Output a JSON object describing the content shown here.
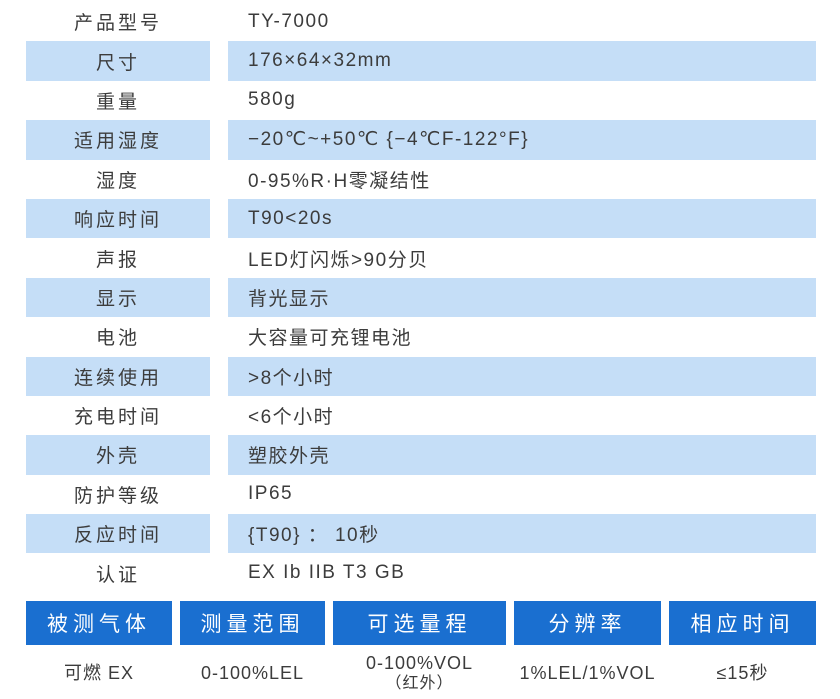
{
  "colors": {
    "row_shade_blue": "#c5def7",
    "header_blue": "#1a6fd0",
    "text_dark": "#3c3c3c",
    "header_text": "#ffffff"
  },
  "spec_table": {
    "rows": [
      {
        "label": "产品型号",
        "value": "TY-7000",
        "shaded": false
      },
      {
        "label": "尺寸",
        "value": "176×64×32mm",
        "shaded": true
      },
      {
        "label": "重量",
        "value": "580g",
        "shaded": false
      },
      {
        "label": "适用湿度",
        "value": "−20℃~+50℃ {−4℃F-122°F}",
        "shaded": true
      },
      {
        "label": "湿度",
        "value": "0-95%R·H零凝结性",
        "shaded": false
      },
      {
        "label": "响应时间",
        "value": "T90<20s",
        "shaded": true
      },
      {
        "label": "声报",
        "value": "LED灯闪烁>90分贝",
        "shaded": false
      },
      {
        "label": "显示",
        "value": "背光显示",
        "shaded": true
      },
      {
        "label": "电池",
        "value": "大容量可充锂电池",
        "shaded": false
      },
      {
        "label": "连续使用",
        "value": ">8个小时",
        "shaded": true
      },
      {
        "label": "充电时间",
        "value": "<6个小时",
        "shaded": false
      },
      {
        "label": "外壳",
        "value": "塑胶外壳",
        "shaded": true
      },
      {
        "label": "防护等级",
        "value": "IP65",
        "shaded": false
      },
      {
        "label": "反应时间",
        "value": "{T90} ： 10秒",
        "shaded": true
      },
      {
        "label": "认证",
        "value": "EX Ib IIB T3 GB",
        "shaded": false
      }
    ]
  },
  "bottom_table": {
    "columns": [
      {
        "header": "被测气体",
        "value": "可燃 EX"
      },
      {
        "header": "测量范围",
        "value": "0-100%LEL"
      },
      {
        "header": "可选量程",
        "value": "0-100%VOL",
        "value_line2": "（红外）"
      },
      {
        "header": "分辨率",
        "value": "1%LEL/1%VOL"
      },
      {
        "header": "相应时间",
        "value": "≤15秒"
      }
    ]
  }
}
